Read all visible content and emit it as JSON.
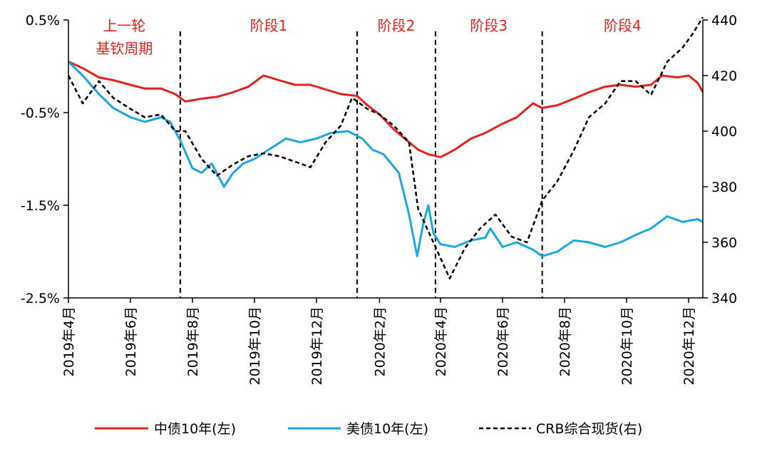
{
  "chart_data": {
    "type": "line",
    "y_left": {
      "ticks": [
        "0.5%",
        "-0.5%",
        "-1.5%",
        "-2.5%"
      ],
      "range": [
        -2.5,
        0.5
      ],
      "unit": "%"
    },
    "y_right": {
      "ticks": [
        "440",
        "420",
        "400",
        "380",
        "360",
        "340"
      ],
      "range": [
        340,
        440
      ]
    },
    "x": {
      "ticks": [
        "2019年4月",
        "2019年6月",
        "2019年8月",
        "2019年10月",
        "2019年12月",
        "2020年2月",
        "2020年4月",
        "2020年6月",
        "2020年8月",
        "2020年10月",
        "2020年12月"
      ],
      "tick_dates": [
        "2019-04-01",
        "2019-06-01",
        "2019-08-01",
        "2019-10-01",
        "2019-12-01",
        "2020-02-01",
        "2020-04-01",
        "2020-06-01",
        "2020-08-01",
        "2020-10-01",
        "2020-12-01"
      ],
      "range": [
        "2019-04-01",
        "2020-12-15"
      ]
    },
    "phases": [
      {
        "label_lines": [
          "上一轮",
          "基钦周期"
        ],
        "start": "2019-04-01",
        "end": "2019-07-20"
      },
      {
        "label_lines": [
          "阶段1"
        ],
        "start": "2019-07-20",
        "end": "2020-01-10"
      },
      {
        "label_lines": [
          "阶段2"
        ],
        "start": "2020-01-10",
        "end": "2020-03-27"
      },
      {
        "label_lines": [
          "阶段3"
        ],
        "start": "2020-03-27",
        "end": "2020-07-10"
      },
      {
        "label_lines": [
          "阶段4"
        ],
        "start": "2020-07-10",
        "end": "2020-12-15"
      }
    ],
    "grid": false,
    "legend_position": "bottom",
    "series": [
      {
        "name": "中债10年(左)",
        "axis": "left",
        "color": "#e8211d",
        "style": "solid",
        "points": [
          [
            "2019-04-01",
            0.05
          ],
          [
            "2019-04-15",
            -0.02
          ],
          [
            "2019-05-01",
            -0.12
          ],
          [
            "2019-05-15",
            -0.15
          ],
          [
            "2019-06-01",
            -0.2
          ],
          [
            "2019-06-15",
            -0.24
          ],
          [
            "2019-07-01",
            -0.24
          ],
          [
            "2019-07-15",
            -0.3
          ],
          [
            "2019-07-25",
            -0.38
          ],
          [
            "2019-08-10",
            -0.35
          ],
          [
            "2019-08-25",
            -0.33
          ],
          [
            "2019-09-10",
            -0.28
          ],
          [
            "2019-09-25",
            -0.22
          ],
          [
            "2019-10-10",
            -0.1
          ],
          [
            "2019-10-25",
            -0.15
          ],
          [
            "2019-11-10",
            -0.2
          ],
          [
            "2019-11-25",
            -0.2
          ],
          [
            "2019-12-10",
            -0.25
          ],
          [
            "2019-12-25",
            -0.3
          ],
          [
            "2020-01-10",
            -0.32
          ],
          [
            "2020-01-20",
            -0.42
          ],
          [
            "2020-02-01",
            -0.52
          ],
          [
            "2020-02-15",
            -0.68
          ],
          [
            "2020-03-01",
            -0.82
          ],
          [
            "2020-03-10",
            -0.9
          ],
          [
            "2020-03-20",
            -0.95
          ],
          [
            "2020-04-01",
            -0.98
          ],
          [
            "2020-04-15",
            -0.9
          ],
          [
            "2020-05-01",
            -0.78
          ],
          [
            "2020-05-15",
            -0.72
          ],
          [
            "2020-06-01",
            -0.62
          ],
          [
            "2020-06-15",
            -0.55
          ],
          [
            "2020-07-01",
            -0.4
          ],
          [
            "2020-07-10",
            -0.45
          ],
          [
            "2020-07-25",
            -0.42
          ],
          [
            "2020-08-10",
            -0.35
          ],
          [
            "2020-08-25",
            -0.28
          ],
          [
            "2020-09-10",
            -0.22
          ],
          [
            "2020-09-25",
            -0.2
          ],
          [
            "2020-10-10",
            -0.22
          ],
          [
            "2020-10-25",
            -0.2
          ],
          [
            "2020-11-05",
            -0.1
          ],
          [
            "2020-11-20",
            -0.12
          ],
          [
            "2020-12-01",
            -0.1
          ],
          [
            "2020-12-10",
            -0.18
          ],
          [
            "2020-12-15",
            -0.28
          ]
        ]
      },
      {
        "name": "美债10年(左)",
        "axis": "left",
        "color": "#1ea8e0",
        "style": "solid",
        "points": [
          [
            "2019-04-01",
            0.05
          ],
          [
            "2019-04-15",
            -0.1
          ],
          [
            "2019-05-01",
            -0.3
          ],
          [
            "2019-05-15",
            -0.45
          ],
          [
            "2019-06-01",
            -0.55
          ],
          [
            "2019-06-15",
            -0.6
          ],
          [
            "2019-07-01",
            -0.55
          ],
          [
            "2019-07-10",
            -0.6
          ],
          [
            "2019-07-20",
            -0.8
          ],
          [
            "2019-08-01",
            -1.1
          ],
          [
            "2019-08-10",
            -1.15
          ],
          [
            "2019-08-20",
            -1.05
          ],
          [
            "2019-09-01",
            -1.3
          ],
          [
            "2019-09-10",
            -1.15
          ],
          [
            "2019-09-20",
            -1.05
          ],
          [
            "2019-10-01",
            -1.0
          ],
          [
            "2019-10-15",
            -0.9
          ],
          [
            "2019-11-01",
            -0.78
          ],
          [
            "2019-11-15",
            -0.82
          ],
          [
            "2019-12-01",
            -0.78
          ],
          [
            "2019-12-15",
            -0.72
          ],
          [
            "2020-01-01",
            -0.7
          ],
          [
            "2020-01-15",
            -0.78
          ],
          [
            "2020-01-25",
            -0.9
          ],
          [
            "2020-02-05",
            -0.95
          ],
          [
            "2020-02-20",
            -1.15
          ],
          [
            "2020-03-01",
            -1.6
          ],
          [
            "2020-03-09",
            -2.05
          ],
          [
            "2020-03-15",
            -1.7
          ],
          [
            "2020-03-20",
            -1.5
          ],
          [
            "2020-03-25",
            -1.8
          ],
          [
            "2020-04-01",
            -1.92
          ],
          [
            "2020-04-15",
            -1.95
          ],
          [
            "2020-05-01",
            -1.88
          ],
          [
            "2020-05-15",
            -1.85
          ],
          [
            "2020-05-20",
            -1.75
          ],
          [
            "2020-06-01",
            -1.95
          ],
          [
            "2020-06-15",
            -1.9
          ],
          [
            "2020-07-01",
            -1.98
          ],
          [
            "2020-07-10",
            -2.05
          ],
          [
            "2020-07-25",
            -2.0
          ],
          [
            "2020-08-10",
            -1.88
          ],
          [
            "2020-08-25",
            -1.9
          ],
          [
            "2020-09-10",
            -1.95
          ],
          [
            "2020-09-25",
            -1.9
          ],
          [
            "2020-10-10",
            -1.82
          ],
          [
            "2020-10-25",
            -1.75
          ],
          [
            "2020-11-10",
            -1.62
          ],
          [
            "2020-11-25",
            -1.68
          ],
          [
            "2020-12-10",
            -1.65
          ],
          [
            "2020-12-15",
            -1.68
          ]
        ]
      },
      {
        "name": "CRB综合现货(右)",
        "axis": "right",
        "color": "#000000",
        "style": "dashed",
        "points": [
          [
            "2019-04-01",
            420
          ],
          [
            "2019-04-15",
            410
          ],
          [
            "2019-05-01",
            418
          ],
          [
            "2019-05-15",
            412
          ],
          [
            "2019-06-01",
            408
          ],
          [
            "2019-06-15",
            405
          ],
          [
            "2019-07-01",
            406
          ],
          [
            "2019-07-15",
            400
          ],
          [
            "2019-07-25",
            400
          ],
          [
            "2019-08-10",
            390
          ],
          [
            "2019-08-25",
            384
          ],
          [
            "2019-09-10",
            388
          ],
          [
            "2019-09-25",
            391
          ],
          [
            "2019-10-10",
            392
          ],
          [
            "2019-10-25",
            391
          ],
          [
            "2019-11-10",
            389
          ],
          [
            "2019-11-25",
            387
          ],
          [
            "2019-12-10",
            396
          ],
          [
            "2019-12-25",
            402
          ],
          [
            "2020-01-05",
            412
          ],
          [
            "2020-01-20",
            408
          ],
          [
            "2020-02-01",
            406
          ],
          [
            "2020-02-15",
            402
          ],
          [
            "2020-03-01",
            396
          ],
          [
            "2020-03-10",
            372
          ],
          [
            "2020-03-25",
            360
          ],
          [
            "2020-04-10",
            347
          ],
          [
            "2020-04-25",
            358
          ],
          [
            "2020-05-10",
            365
          ],
          [
            "2020-05-25",
            370
          ],
          [
            "2020-06-10",
            362
          ],
          [
            "2020-06-25",
            360
          ],
          [
            "2020-07-10",
            375
          ],
          [
            "2020-07-25",
            382
          ],
          [
            "2020-08-10",
            393
          ],
          [
            "2020-08-25",
            405
          ],
          [
            "2020-09-10",
            410
          ],
          [
            "2020-09-25",
            418
          ],
          [
            "2020-10-10",
            418
          ],
          [
            "2020-10-25",
            413
          ],
          [
            "2020-11-10",
            425
          ],
          [
            "2020-11-25",
            430
          ],
          [
            "2020-12-05",
            435
          ],
          [
            "2020-12-15",
            441
          ]
        ]
      }
    ]
  }
}
